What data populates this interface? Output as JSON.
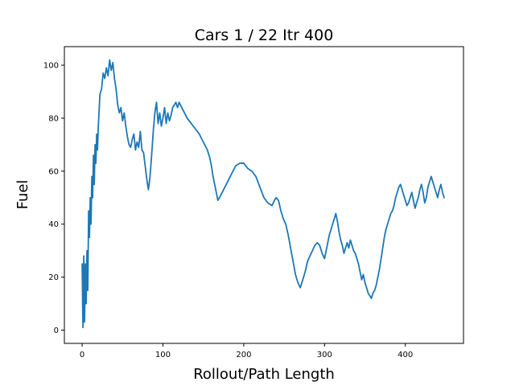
{
  "chart_data": {
    "type": "line",
    "title": "Cars 1 / 22 Itr 400",
    "xlabel": "Rollout/Path Length",
    "ylabel": "Fuel",
    "xlim": [
      -22,
      472
    ],
    "ylim": [
      -5,
      107
    ],
    "xticks": [
      0,
      100,
      200,
      300,
      400
    ],
    "yticks": [
      0,
      20,
      40,
      60,
      80,
      100
    ],
    "grid": false,
    "line_color": "#1f77b4",
    "series": [
      {
        "x": [
          0,
          1,
          2,
          3,
          4,
          5,
          6,
          7,
          8,
          9,
          10,
          11,
          12,
          13,
          14,
          15,
          16,
          17,
          18,
          19,
          20,
          22,
          24,
          26,
          28,
          30,
          32,
          34,
          36,
          38,
          40,
          42,
          44,
          46,
          48,
          50,
          52,
          54,
          56,
          58,
          60,
          62,
          64,
          66,
          68,
          70,
          72,
          74,
          76,
          78,
          80,
          82,
          84,
          86,
          88,
          90,
          92,
          94,
          96,
          98,
          100,
          102,
          104,
          106,
          108,
          110,
          112,
          114,
          116,
          118,
          120,
          125,
          130,
          135,
          140,
          145,
          150,
          155,
          158,
          160,
          162,
          164,
          166,
          168,
          170,
          175,
          180,
          185,
          190,
          195,
          200,
          205,
          210,
          215,
          220,
          225,
          230,
          235,
          238,
          240,
          243,
          246,
          249,
          252,
          255,
          258,
          261,
          264,
          267,
          270,
          273,
          276,
          279,
          282,
          285,
          288,
          291,
          294,
          297,
          300,
          302,
          304,
          306,
          308,
          310,
          312,
          314,
          316,
          318,
          320,
          322,
          324,
          326,
          328,
          330,
          332,
          334,
          336,
          338,
          340,
          342,
          344,
          346,
          348,
          350,
          352,
          354,
          356,
          358,
          360,
          362,
          364,
          366,
          368,
          370,
          372,
          374,
          376,
          378,
          380,
          382,
          384,
          386,
          388,
          390,
          392,
          394,
          396,
          398,
          400,
          402,
          404,
          406,
          408,
          410,
          412,
          414,
          416,
          418,
          420,
          422,
          424,
          426,
          428,
          430,
          432,
          434,
          436,
          438,
          440,
          442,
          444,
          446,
          448
        ],
        "y": [
          25,
          1,
          28,
          3,
          25,
          10,
          30,
          15,
          45,
          35,
          50,
          40,
          58,
          50,
          66,
          55,
          70,
          63,
          74,
          68,
          77,
          89,
          91,
          97,
          95,
          99,
          96,
          102,
          98,
          101,
          95,
          91,
          85,
          82,
          84,
          79,
          82,
          77,
          73,
          70,
          69,
          72,
          74,
          68,
          71,
          69,
          75,
          68,
          67,
          62,
          57,
          53,
          58,
          66,
          75,
          82,
          86,
          78,
          82,
          77,
          80,
          84,
          78,
          82,
          79,
          81,
          84,
          85,
          86,
          84,
          86,
          83,
          80,
          78,
          76,
          74,
          71,
          68,
          65,
          62,
          58,
          55,
          52,
          49,
          50,
          53,
          56,
          59,
          62,
          63,
          63,
          61,
          60,
          58,
          54,
          50,
          48,
          47,
          49,
          50,
          49,
          45,
          42,
          40,
          36,
          31,
          26,
          21,
          18,
          16,
          19,
          22,
          26,
          28,
          30,
          32,
          33,
          32,
          29,
          27,
          30,
          33,
          36,
          38,
          40,
          42,
          44,
          41,
          37,
          34,
          32,
          29,
          31,
          33,
          31,
          34,
          32,
          30,
          29,
          27,
          25,
          22,
          19,
          21,
          18,
          16,
          14,
          13,
          12,
          14,
          15,
          17,
          20,
          23,
          27,
          31,
          35,
          38,
          40,
          42,
          44,
          45,
          47,
          50,
          52,
          54,
          55,
          53,
          51,
          49,
          47,
          48,
          50,
          52,
          49,
          46,
          48,
          50,
          53,
          55,
          52,
          48,
          50,
          54,
          56,
          58,
          56,
          54,
          52,
          50,
          53,
          55,
          52,
          50
        ]
      }
    ]
  }
}
